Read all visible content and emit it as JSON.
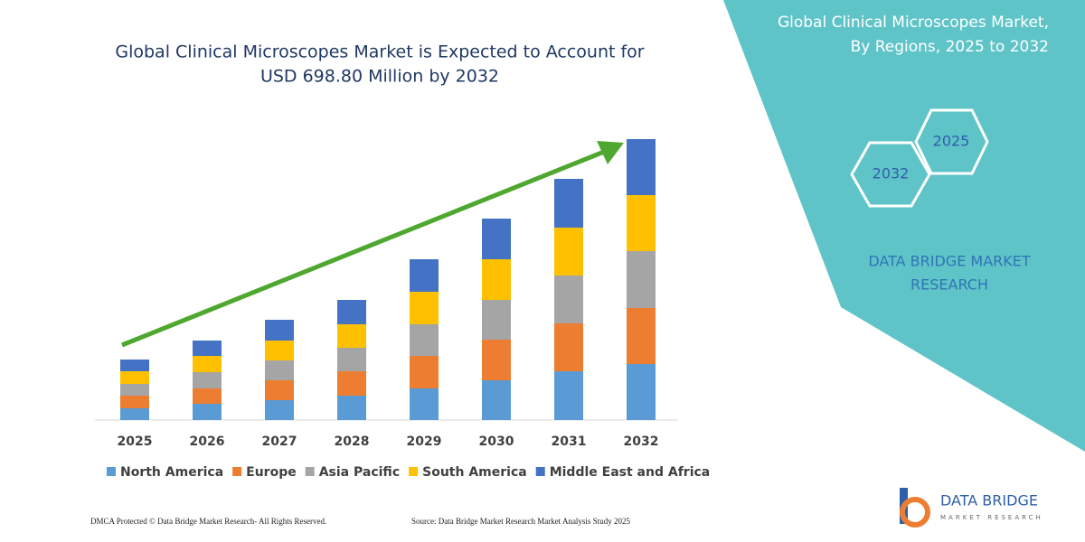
{
  "chart_data": {
    "type": "bar",
    "stacked": true,
    "title_lines": [
      "Global Clinical Microscopes Market is Expected to Account for",
      "USD 698.80 Million by 2032"
    ],
    "categories": [
      "2025",
      "2026",
      "2027",
      "2028",
      "2029",
      "2030",
      "2031",
      "2032"
    ],
    "series": [
      {
        "name": "North America",
        "color": "#5b9bd5",
        "values": [
          13,
          18,
          22,
          27,
          35,
          44,
          54,
          62
        ]
      },
      {
        "name": "Europe",
        "color": "#ed7d31",
        "values": [
          14,
          17,
          22,
          27,
          36,
          45,
          53,
          62
        ]
      },
      {
        "name": "Asia Pacific",
        "color": "#a5a5a5",
        "values": [
          13,
          18,
          22,
          26,
          35,
          44,
          53,
          63
        ]
      },
      {
        "name": "South America",
        "color": "#ffc000",
        "values": [
          14,
          18,
          22,
          26,
          36,
          45,
          53,
          62
        ]
      },
      {
        "name": "Middle East and Africa",
        "color": "#4472c4",
        "values": [
          13,
          17,
          23,
          27,
          36,
          45,
          54,
          62
        ]
      }
    ],
    "ylim": [
      0,
      320
    ]
  },
  "panel": {
    "title_lines": [
      "Global Clinical Microscopes Market,",
      "By Regions, 2025 to 2032"
    ],
    "hexagons": [
      "2025",
      "2032"
    ],
    "brand_lines": [
      "DATA BRIDGE MARKET",
      "RESEARCH"
    ]
  },
  "footer": {
    "left": "DMCA Protected © Data Bridge Market Research-  All Rights Reserved.",
    "right": "Source: Data Bridge Market Research  Market Analysis Study 2025"
  },
  "logo": {
    "name": "DATA BRIDGE",
    "tagline": "MARKET RESEARCH"
  }
}
